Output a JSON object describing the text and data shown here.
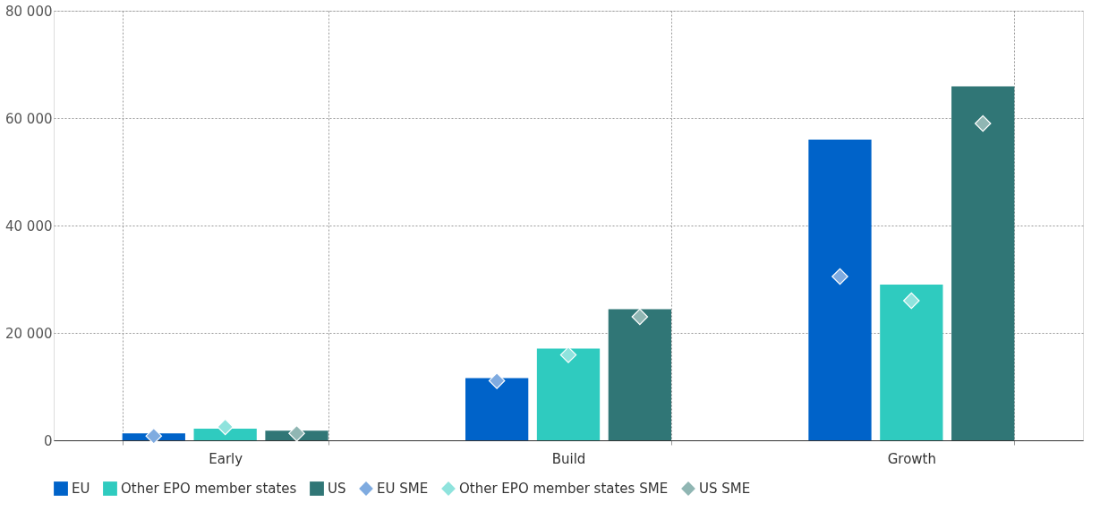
{
  "chart_data": {
    "type": "bar",
    "categories": [
      "Early",
      "Build",
      "Growth"
    ],
    "series": [
      {
        "name": "EU",
        "color": "#0063c9",
        "values": [
          1300,
          11600,
          56000
        ]
      },
      {
        "name": "Other EPO member states",
        "color": "#2fcbbf",
        "values": [
          2150,
          17100,
          29000
        ]
      },
      {
        "name": "US",
        "color": "#307676",
        "values": [
          1800,
          24400,
          65900
        ]
      },
      {
        "name": "EU SME",
        "type": "scatter",
        "marker": "diamond",
        "color": "#7fabe0",
        "values": [
          800,
          11100,
          30500
        ]
      },
      {
        "name": "Other EPO member states SME",
        "type": "scatter",
        "marker": "diamond",
        "color": "#8fe3dd",
        "values": [
          2500,
          15900,
          26000
        ]
      },
      {
        "name": "US SME",
        "type": "scatter",
        "marker": "diamond",
        "color": "#90b6b3",
        "values": [
          1300,
          23000,
          59000
        ]
      }
    ],
    "ylim": [
      0,
      80000
    ],
    "yticks": [
      {
        "value": 0,
        "label": "0"
      },
      {
        "value": 20000,
        "label": "20 000"
      },
      {
        "value": 40000,
        "label": "40 000"
      },
      {
        "value": 60000,
        "label": "60 000"
      },
      {
        "value": 80000,
        "label": "80 000"
      }
    ],
    "grid": true,
    "legend": "bottom"
  }
}
